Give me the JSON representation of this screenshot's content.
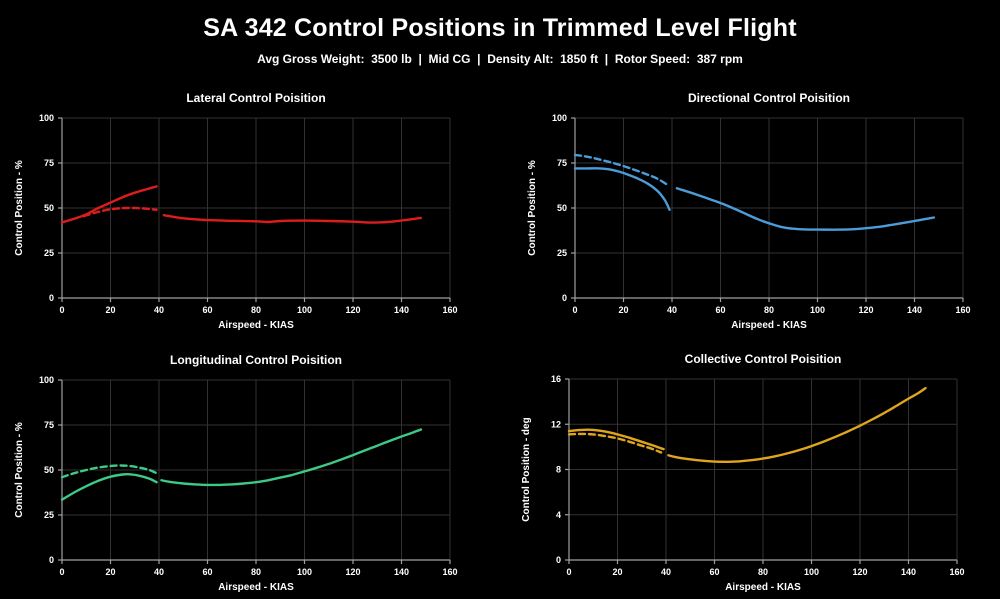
{
  "page": {
    "title": "SA 342 Control Positions in Trimmed Level Flight",
    "subtitle": "Avg Gross Weight:  3500 lb  |  Mid CG  |  Density Alt:  1850 ft  |  Rotor Speed:  387 rpm",
    "background": "#000000",
    "text_color": "#ffffff",
    "grid_color": "#323232",
    "axis_color": "#a0a0a0"
  },
  "chart_data": [
    {
      "id": "lateral",
      "type": "line",
      "title": "Lateral Control Poisition",
      "xlabel": "Airspeed - KIAS",
      "ylabel": "Control Position - %",
      "xlim": [
        0,
        160
      ],
      "ylim": [
        0,
        100
      ],
      "xticks": [
        0,
        20,
        40,
        60,
        80,
        100,
        120,
        140,
        160
      ],
      "yticks": [
        0,
        25,
        50,
        75,
        100
      ],
      "grid": true,
      "legend": "none",
      "color": "#dd1c1c",
      "series": [
        {
          "name": "low-speed-solid",
          "style": "solid",
          "points": [
            [
              0,
              42
            ],
            [
              5,
              44
            ],
            [
              10,
              46.5
            ],
            [
              15,
              50
            ],
            [
              20,
              53
            ],
            [
              25,
              56
            ],
            [
              30,
              58.5
            ],
            [
              35,
              60.5
            ],
            [
              39,
              62
            ]
          ]
        },
        {
          "name": "low-speed-dashed",
          "style": "dashed",
          "points": [
            [
              9,
              45.5
            ],
            [
              14,
              47.5
            ],
            [
              18,
              48.8
            ],
            [
              22,
              49.6
            ],
            [
              26,
              50
            ],
            [
              30,
              50
            ],
            [
              34,
              49.7
            ],
            [
              39,
              49
            ]
          ]
        },
        {
          "name": "cruise-solid",
          "style": "solid",
          "points": [
            [
              42,
              46
            ],
            [
              50,
              44.3
            ],
            [
              60,
              43.3
            ],
            [
              70,
              42.9
            ],
            [
              80,
              42.6
            ],
            [
              85,
              42.2
            ],
            [
              90,
              42.8
            ],
            [
              100,
              43
            ],
            [
              110,
              42.8
            ],
            [
              120,
              42.4
            ],
            [
              127,
              41.9
            ],
            [
              134,
              42.2
            ],
            [
              141,
              43.2
            ],
            [
              148,
              44.5
            ]
          ]
        }
      ]
    },
    {
      "id": "directional",
      "type": "line",
      "title": "Directional Control Poisition",
      "xlabel": "Airspeed - KIAS",
      "ylabel": "Control Position - %",
      "xlim": [
        0,
        160
      ],
      "ylim": [
        0,
        100
      ],
      "xticks": [
        0,
        20,
        40,
        60,
        80,
        100,
        120,
        140,
        160
      ],
      "yticks": [
        0,
        25,
        50,
        75,
        100
      ],
      "grid": true,
      "legend": "none",
      "color": "#4b9cd8",
      "series": [
        {
          "name": "low-speed-dashed",
          "style": "dashed",
          "points": [
            [
              0,
              79.5
            ],
            [
              5,
              78.5
            ],
            [
              10,
              77
            ],
            [
              15,
              75.3
            ],
            [
              20,
              73.3
            ],
            [
              25,
              71
            ],
            [
              30,
              68.5
            ],
            [
              34,
              66.3
            ],
            [
              38,
              63
            ]
          ]
        },
        {
          "name": "low-speed-solid",
          "style": "solid",
          "points": [
            [
              0,
              72
            ],
            [
              5,
              72
            ],
            [
              10,
              72
            ],
            [
              14,
              71.5
            ],
            [
              18,
              70.3
            ],
            [
              22,
              68.5
            ],
            [
              26,
              66.3
            ],
            [
              30,
              63.5
            ],
            [
              34,
              59.5
            ],
            [
              37,
              54.5
            ],
            [
              39,
              49
            ]
          ]
        },
        {
          "name": "cruise-solid",
          "style": "solid",
          "points": [
            [
              42,
              61
            ],
            [
              50,
              57.5
            ],
            [
              60,
              52.8
            ],
            [
              65,
              50
            ],
            [
              70,
              47
            ],
            [
              75,
              44
            ],
            [
              80,
              41.5
            ],
            [
              85,
              39.5
            ],
            [
              90,
              38.5
            ],
            [
              95,
              38.1
            ],
            [
              100,
              38
            ],
            [
              110,
              38
            ],
            [
              115,
              38.2
            ],
            [
              120,
              38.8
            ],
            [
              125,
              39.5
            ],
            [
              130,
              40.5
            ],
            [
              135,
              41.6
            ],
            [
              140,
              42.8
            ],
            [
              145,
              44
            ],
            [
              148,
              44.7
            ]
          ]
        }
      ]
    },
    {
      "id": "longitudinal",
      "type": "line",
      "title": "Longitudinal Control Poisition",
      "xlabel": "Airspeed - KIAS",
      "ylabel": "Control Position - %",
      "xlim": [
        0,
        160
      ],
      "ylim": [
        0,
        100
      ],
      "xticks": [
        0,
        20,
        40,
        60,
        80,
        100,
        120,
        140,
        160
      ],
      "yticks": [
        0,
        25,
        50,
        75,
        100
      ],
      "grid": true,
      "legend": "none",
      "color": "#3ec986",
      "series": [
        {
          "name": "low-speed-dashed",
          "style": "dashed",
          "points": [
            [
              0,
              46
            ],
            [
              5,
              48.2
            ],
            [
              10,
              50
            ],
            [
              15,
              51.4
            ],
            [
              20,
              52.2
            ],
            [
              24,
              52.5
            ],
            [
              28,
              52.2
            ],
            [
              32,
              51.3
            ],
            [
              36,
              50
            ],
            [
              39,
              48.2
            ]
          ]
        },
        {
          "name": "low-speed-solid",
          "style": "solid",
          "points": [
            [
              0,
              33.5
            ],
            [
              5,
              37.5
            ],
            [
              10,
              41
            ],
            [
              15,
              44
            ],
            [
              20,
              46.3
            ],
            [
              25,
              47.5
            ],
            [
              28,
              47.6
            ],
            [
              32,
              46.8
            ],
            [
              36,
              45.2
            ],
            [
              39,
              43.2
            ]
          ]
        },
        {
          "name": "cruise-solid",
          "style": "solid",
          "points": [
            [
              41,
              44.3
            ],
            [
              45,
              43.3
            ],
            [
              50,
              42.5
            ],
            [
              55,
              42
            ],
            [
              60,
              41.7
            ],
            [
              65,
              41.7
            ],
            [
              70,
              42
            ],
            [
              75,
              42.5
            ],
            [
              80,
              43.2
            ],
            [
              85,
              44.3
            ],
            [
              90,
              45.8
            ],
            [
              95,
              47.3
            ],
            [
              100,
              49.2
            ],
            [
              105,
              51.2
            ],
            [
              110,
              53.4
            ],
            [
              115,
              55.8
            ],
            [
              120,
              58.3
            ],
            [
              125,
              60.9
            ],
            [
              130,
              63.5
            ],
            [
              135,
              66.1
            ],
            [
              140,
              68.6
            ],
            [
              145,
              71
            ],
            [
              148,
              72.5
            ]
          ]
        }
      ]
    },
    {
      "id": "collective",
      "type": "line",
      "title": "Collective Control Poisition",
      "xlabel": "Airspeed - KIAS",
      "ylabel": "Control Position - deg",
      "xlim": [
        0,
        160
      ],
      "ylim": [
        0,
        16
      ],
      "xticks": [
        0,
        20,
        40,
        60,
        80,
        100,
        120,
        140,
        160
      ],
      "yticks": [
        0,
        4,
        8,
        12,
        16
      ],
      "grid": true,
      "legend": "none",
      "color": "#dfa61d",
      "series": [
        {
          "name": "low-speed-solid",
          "style": "solid",
          "points": [
            [
              0,
              11.4
            ],
            [
              5,
              11.5
            ],
            [
              10,
              11.5
            ],
            [
              15,
              11.35
            ],
            [
              20,
              11.1
            ],
            [
              25,
              10.8
            ],
            [
              30,
              10.45
            ],
            [
              35,
              10.1
            ],
            [
              39,
              9.8
            ]
          ]
        },
        {
          "name": "low-speed-dashed",
          "style": "dashed",
          "points": [
            [
              0,
              11.1
            ],
            [
              5,
              11.15
            ],
            [
              10,
              11.1
            ],
            [
              15,
              10.95
            ],
            [
              20,
              10.75
            ],
            [
              25,
              10.45
            ],
            [
              30,
              10.1
            ],
            [
              34,
              9.85
            ],
            [
              38,
              9.5
            ]
          ]
        },
        {
          "name": "cruise-solid",
          "style": "solid",
          "points": [
            [
              41,
              9.25
            ],
            [
              45,
              9.05
            ],
            [
              50,
              8.9
            ],
            [
              55,
              8.78
            ],
            [
              60,
              8.7
            ],
            [
              65,
              8.68
            ],
            [
              70,
              8.72
            ],
            [
              75,
              8.82
            ],
            [
              80,
              8.97
            ],
            [
              85,
              9.17
            ],
            [
              90,
              9.42
            ],
            [
              95,
              9.72
            ],
            [
              100,
              10.07
            ],
            [
              105,
              10.47
            ],
            [
              110,
              10.9
            ],
            [
              115,
              11.37
            ],
            [
              120,
              11.87
            ],
            [
              125,
              12.42
            ],
            [
              130,
              13.0
            ],
            [
              135,
              13.62
            ],
            [
              140,
              14.27
            ],
            [
              144,
              14.75
            ],
            [
              147,
              15.2
            ]
          ]
        }
      ]
    }
  ]
}
